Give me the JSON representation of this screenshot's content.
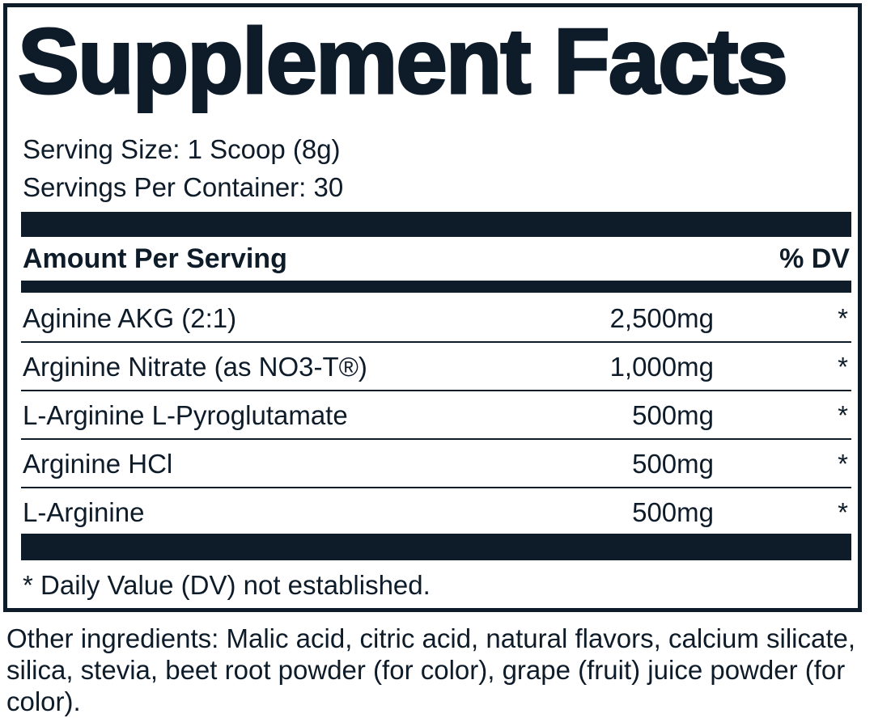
{
  "title": "Supplement Facts",
  "serving_size": "Serving Size: 1 Scoop (8g)",
  "servings_per_container": "Servings Per Container: 30",
  "header": {
    "amount": "Amount Per Serving",
    "dv": "% DV"
  },
  "rows": [
    {
      "name": "Aginine AKG (2:1)",
      "amount": "2,500mg",
      "dv": "*"
    },
    {
      "name": "Arginine Nitrate (as NO3-T®)",
      "amount": "1,000mg",
      "dv": "*"
    },
    {
      "name": "L-Arginine L-Pyroglutamate",
      "amount": "500mg",
      "dv": "*"
    },
    {
      "name": "Arginine HCl",
      "amount": "500mg",
      "dv": "*"
    },
    {
      "name": "L-Arginine",
      "amount": "500mg",
      "dv": "*"
    }
  ],
  "footnote": "* Daily Value (DV) not established.",
  "other_ingredients": "Other ingredients: Malic acid, citric acid, natural flavors, calcium silicate, silica, stevia, beet root powder (for color), grape (fruit) juice powder (for color)."
}
